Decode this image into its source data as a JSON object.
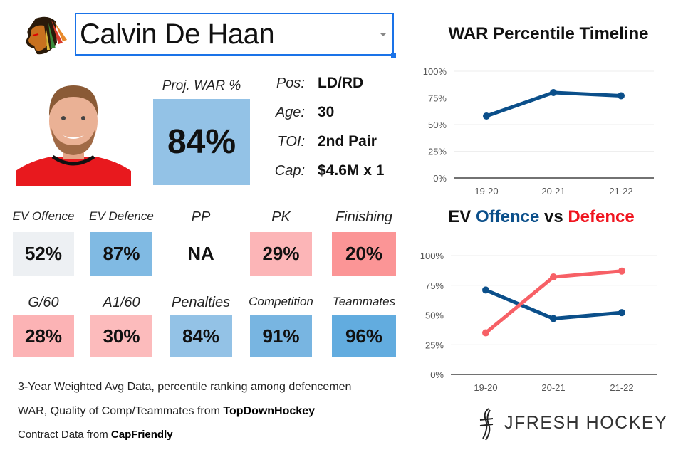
{
  "player": {
    "name": "Calvin De Haan",
    "team_logo": "blackhawks-logo"
  },
  "proj_war": {
    "label": "Proj. WAR %",
    "value": "84%",
    "color": "#93c2e6"
  },
  "info": [
    {
      "key": "Pos:",
      "value": "LD/RD"
    },
    {
      "key": "Age:",
      "value": "30"
    },
    {
      "key": "TOI:",
      "value": "2nd Pair"
    },
    {
      "key": "Cap:",
      "value": "$4.6M x 1"
    }
  ],
  "tiles": [
    {
      "label": "EV Offence",
      "value": "52%",
      "color": "#edf0f3"
    },
    {
      "label": "EV Defence",
      "value": "87%",
      "color": "#80bae3"
    },
    {
      "label": "PP",
      "value": "NA",
      "color": "#ffffff"
    },
    {
      "label": "PK",
      "value": "29%",
      "color": "#fcb5b7"
    },
    {
      "label": "Finishing",
      "value": "20%",
      "color": "#fb9596"
    },
    {
      "label": "G/60",
      "value": "28%",
      "color": "#fcb3b5"
    },
    {
      "label": "A1/60",
      "value": "30%",
      "color": "#fcbbbc"
    },
    {
      "label": "Penalties",
      "value": "84%",
      "color": "#93c2e6"
    },
    {
      "label": "Competition",
      "value": "91%",
      "color": "#78b5e1"
    },
    {
      "label": "Teammates",
      "value": "96%",
      "color": "#62acdf"
    }
  ],
  "notes": {
    "line1": "3-Year Weighted Avg Data, percentile ranking among defencemen",
    "line2_prefix": "WAR, Quality of Comp/Teammates from ",
    "line2_source": "TopDownHockey",
    "line3_prefix": "Contract Data from ",
    "line3_source": "CapFriendly"
  },
  "brand": {
    "text": "JFRESH HOCKEY"
  },
  "chart_data": [
    {
      "type": "line",
      "title": "WAR Percentile Timeline",
      "categories": [
        "19-20",
        "20-21",
        "21-22"
      ],
      "yticks": [
        "0%",
        "25%",
        "50%",
        "75%",
        "100%"
      ],
      "ylim": [
        0,
        100
      ],
      "grid": true,
      "series": [
        {
          "values": [
            58,
            80,
            77
          ],
          "color": "#0b4f8a"
        }
      ]
    },
    {
      "type": "line",
      "title_parts": [
        "EV ",
        "Offence",
        " vs ",
        "Defence"
      ],
      "categories": [
        "19-20",
        "20-21",
        "21-22"
      ],
      "yticks": [
        "0%",
        "25%",
        "50%",
        "75%",
        "100%"
      ],
      "ylim": [
        0,
        100
      ],
      "grid": true,
      "series": [
        {
          "name": "Offence",
          "values": [
            71,
            47,
            52
          ],
          "color": "#0b4f8a"
        },
        {
          "name": "Defence",
          "values": [
            35,
            82,
            87
          ],
          "color": "#f76066"
        }
      ]
    }
  ]
}
